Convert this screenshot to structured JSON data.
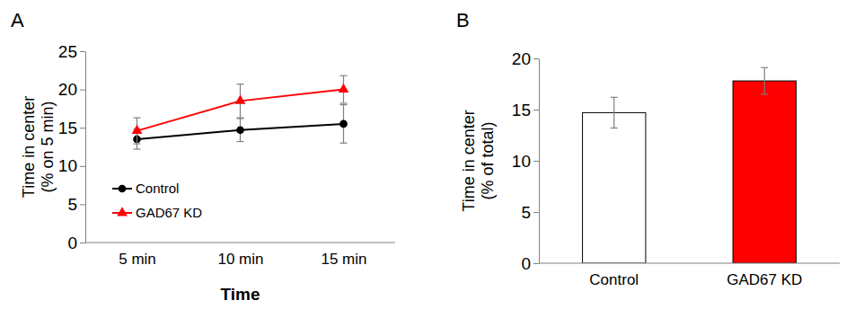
{
  "chart_data": [
    {
      "type": "line",
      "panel": "A",
      "xlabel": "Time",
      "ylabel": "Time in center\n(% on 5 min)",
      "categories": [
        "5 min",
        "10 min",
        "15 min"
      ],
      "series": [
        {
          "name": "Control",
          "color": "#000000",
          "marker": "circle",
          "values": [
            13.5,
            14.7,
            15.5
          ],
          "errors": [
            1.3,
            1.5,
            2.5
          ]
        },
        {
          "name": "GAD67 KD",
          "color": "#ff0000",
          "marker": "triangle",
          "values": [
            14.6,
            18.5,
            20.0
          ],
          "errors": [
            1.7,
            2.2,
            1.8
          ]
        }
      ],
      "ylim": [
        0,
        25
      ],
      "yticks": [
        0,
        5,
        10,
        15,
        20,
        25
      ],
      "legend": "lower left"
    },
    {
      "type": "bar",
      "panel": "B",
      "ylabel": "Time in center\n(% of total)",
      "categories": [
        "Control",
        "GAD67 KD"
      ],
      "values": [
        14.7,
        17.8
      ],
      "errors": [
        1.5,
        1.3
      ],
      "colors": [
        "#ffffff",
        "#ff0000"
      ],
      "ylim": [
        0,
        20
      ],
      "yticks": [
        0,
        5,
        10,
        15,
        20
      ]
    }
  ]
}
